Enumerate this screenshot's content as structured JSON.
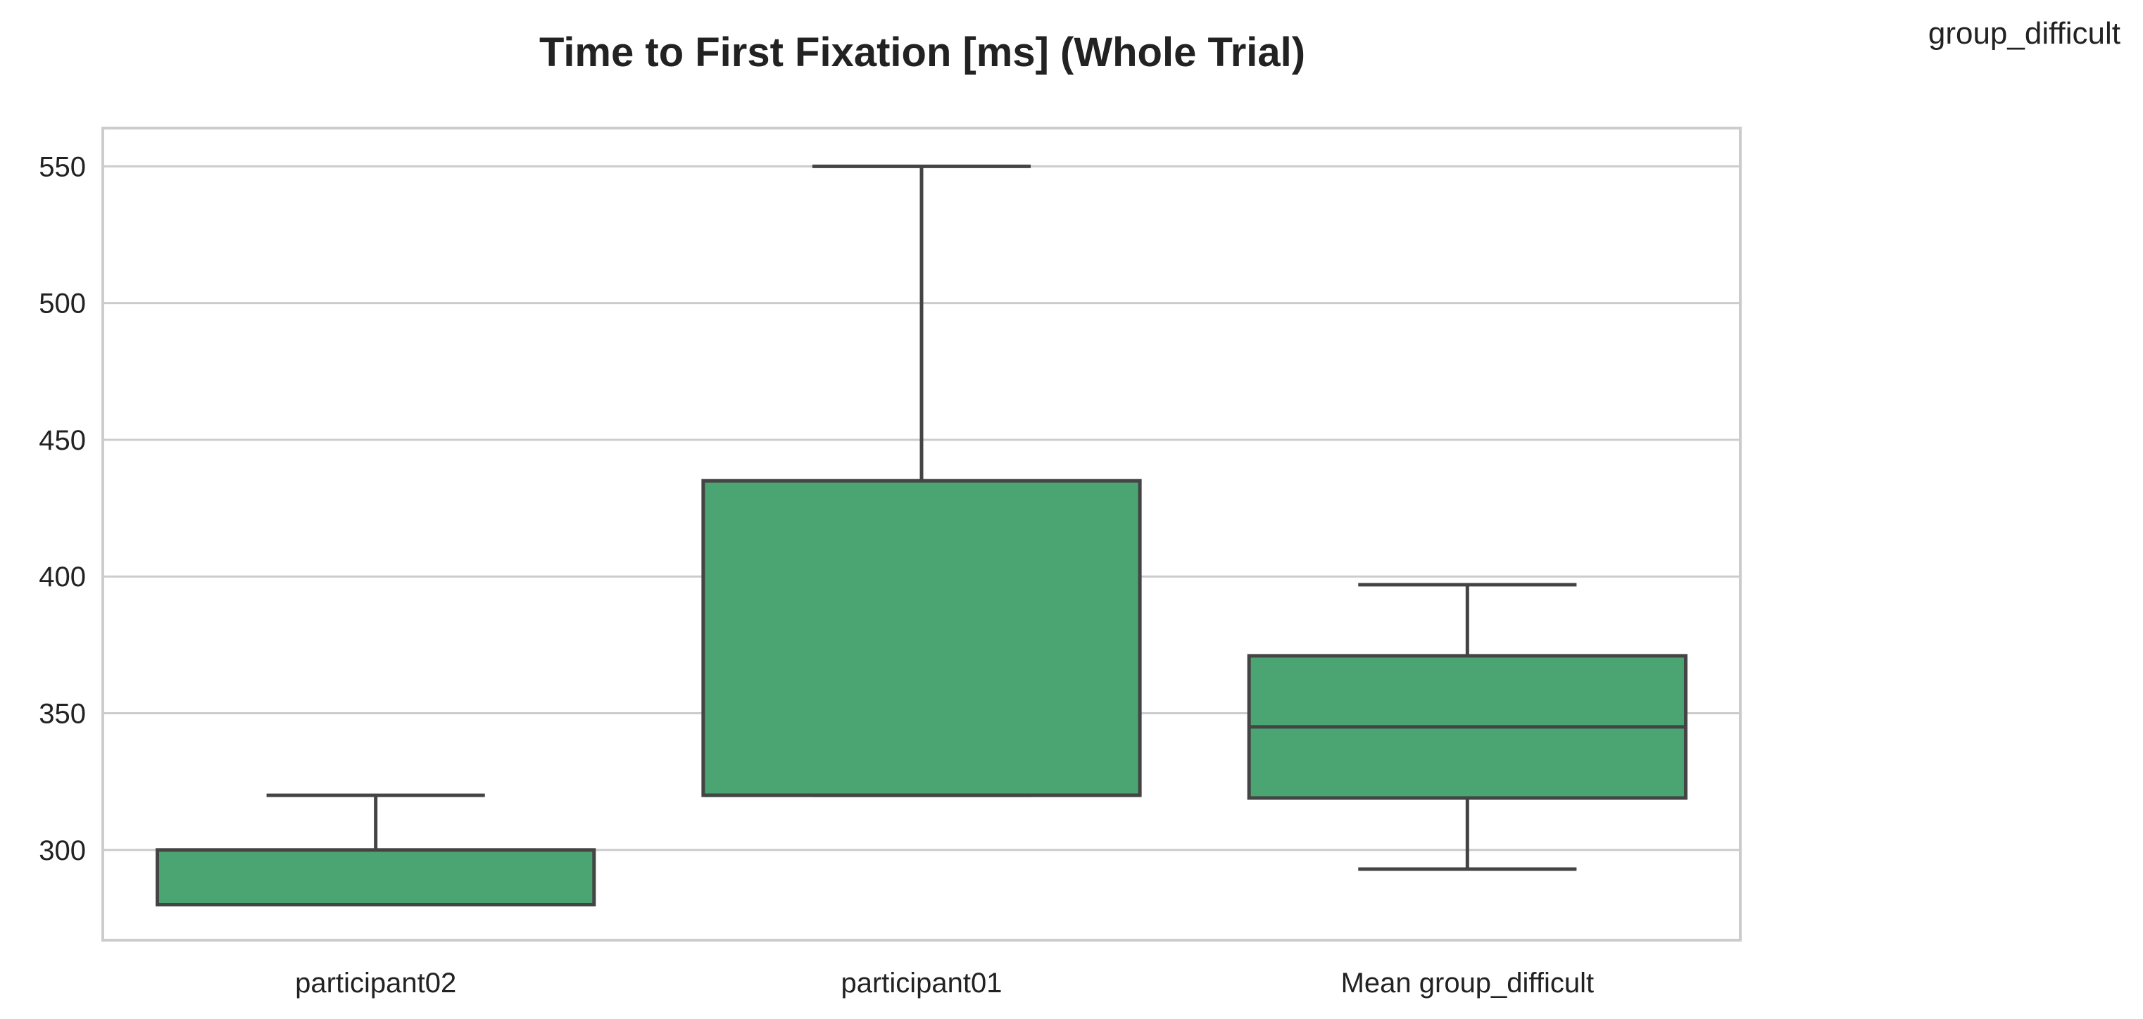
{
  "chart_data": {
    "type": "box",
    "title": "Time to First Fixation [ms] (Whole Trial)",
    "corner_label": "group_difficult",
    "xlabel": "",
    "ylabel": "",
    "categories": [
      "participant02",
      "participant01",
      "Mean group_difficult"
    ],
    "boxes": [
      {
        "category": "participant02",
        "whisker_low": 280,
        "q1": 280,
        "median": 280,
        "q3": 300,
        "whisker_high": 320
      },
      {
        "category": "participant01",
        "whisker_low": 320,
        "q1": 320,
        "median": 320,
        "q3": 435,
        "whisker_high": 550
      },
      {
        "category": "Mean group_difficult",
        "whisker_low": 293,
        "q1": 319,
        "median": 345,
        "q3": 371,
        "whisker_high": 397
      }
    ],
    "ylim": [
      267,
      564
    ],
    "yticks": [
      300,
      350,
      400,
      450,
      500,
      550
    ],
    "grid": true,
    "box_color": "#4aa573",
    "line_color": "#444444",
    "grid_color": "#cccccc"
  }
}
